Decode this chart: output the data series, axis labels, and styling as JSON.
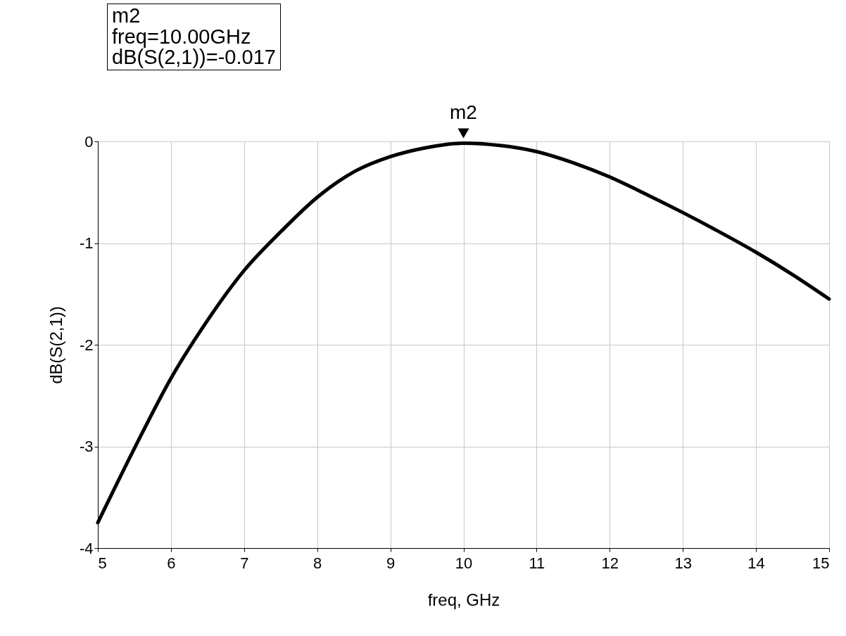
{
  "chart_data": {
    "type": "line",
    "xlabel": "freq, GHz",
    "ylabel": "dB(S(2,1))",
    "x": [
      5,
      5.5,
      6,
      6.5,
      7,
      7.5,
      8,
      8.5,
      9,
      9.5,
      10,
      10.5,
      11,
      11.5,
      12,
      12.5,
      13,
      13.5,
      14,
      14.5,
      15
    ],
    "series": [
      {
        "color": "#000000",
        "values": [
          -3.75,
          -3.02,
          -2.33,
          -1.76,
          -1.27,
          -0.89,
          -0.55,
          -0.3,
          -0.15,
          -0.06,
          -0.017,
          -0.04,
          -0.1,
          -0.21,
          -0.35,
          -0.52,
          -0.7,
          -0.89,
          -1.09,
          -1.31,
          -1.55
        ]
      }
    ],
    "xlim": [
      5,
      15
    ],
    "xticks": [
      5,
      6,
      7,
      8,
      9,
      10,
      11,
      12,
      13,
      14,
      15
    ],
    "ylim": [
      -4,
      0
    ],
    "yticks": [
      -4,
      -3,
      -2,
      -1,
      0
    ],
    "grid": true,
    "marker": "none",
    "annotations": [
      "m2\nfreq=10.00GHz\ndB(S(2,1))=-0.017",
      {
        "text": "m2",
        "x": 10,
        "y": -0.017
      }
    ]
  }
}
